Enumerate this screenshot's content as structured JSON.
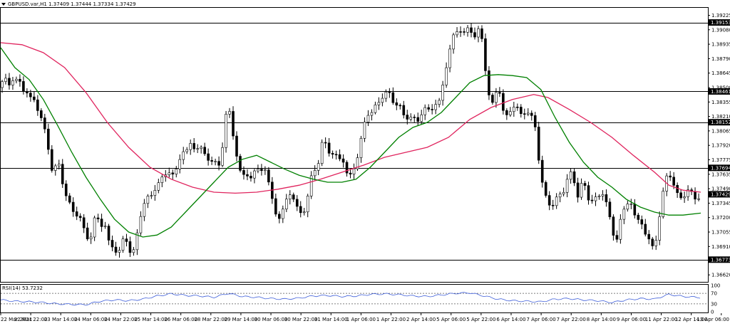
{
  "header": {
    "symbol_line": "GBPUSD.var,H1  1.37409 1.37444 1.37334 1.37429",
    "menu_icon": "triangle-down-icon"
  },
  "rsi_panel": {
    "label": "RSI(14) 53.7232",
    "levels": [
      "100",
      "70",
      "30",
      "0"
    ]
  },
  "colors": {
    "candle": "#000000",
    "ma_fast": "#008000",
    "ma_slow": "#e0245e",
    "rsi": "#3f5fd9",
    "hline": "#000000",
    "price_tag_bg": "#000000",
    "price_tag_fg": "#ffffff"
  },
  "chart_data": {
    "type": "candlestick",
    "y_ticks": [
      "1.39225",
      "1.39080",
      "1.38935",
      "1.38790",
      "1.38645",
      "1.38500",
      "1.38355",
      "1.38210",
      "1.38065",
      "1.37920",
      "1.37775",
      "1.37635",
      "1.37490",
      "1.37345",
      "1.37200",
      "1.37055",
      "1.36910",
      "1.36620"
    ],
    "ylim": [
      1.3655,
      1.393
    ],
    "x_ticks": [
      "22 Mar 2021",
      "22 Mar 22:00",
      "23 Mar 14:00",
      "24 Mar 06:00",
      "24 Mar 22:00",
      "25 Mar 14:00",
      "26 Mar 06:00",
      "28 Mar 22:00",
      "29 Mar 14:00",
      "30 Mar 06:00",
      "30 Mar 22:00",
      "31 Mar 14:00",
      "1 Apr 06:00",
      "1 Apr 22:00",
      "2 Apr 14:00",
      "5 Apr 06:00",
      "5 Apr 22:00",
      "6 Apr 14:00",
      "7 Apr 06:00",
      "7 Apr 22:00",
      "8 Apr 14:00",
      "9 Apr 06:00",
      "11 Apr 22:00",
      "12 Apr 14:00",
      "13 Apr 06:00"
    ],
    "horizontal_levels": [
      {
        "price": 1.39153,
        "label": "1.39153"
      },
      {
        "price": 1.38461,
        "label": "1.38461"
      },
      {
        "price": 1.38152,
        "label": "1.38152"
      },
      {
        "price": 1.37694,
        "label": "1.37694"
      },
      {
        "price": 1.36773,
        "label": "1.36773"
      }
    ],
    "current_price": {
      "price": 1.37429,
      "label": "1.37429"
    },
    "close_path": [
      [
        0,
        1.385
      ],
      [
        5,
        1.3865
      ],
      [
        10,
        1.3848
      ],
      [
        15,
        1.386
      ],
      [
        20,
        1.3855
      ],
      [
        25,
        1.3862
      ],
      [
        30,
        1.3845
      ],
      [
        35,
        1.385
      ],
      [
        40,
        1.3838
      ],
      [
        45,
        1.3842
      ],
      [
        50,
        1.383
      ],
      [
        55,
        1.3825
      ],
      [
        60,
        1.3812
      ],
      [
        65,
        1.38
      ],
      [
        70,
        1.377
      ],
      [
        75,
        1.3765
      ],
      [
        80,
        1.378
      ],
      [
        85,
        1.376
      ],
      [
        90,
        1.3745
      ],
      [
        95,
        1.3738
      ],
      [
        100,
        1.3728
      ],
      [
        105,
        1.372
      ],
      [
        110,
        1.3725
      ],
      [
        115,
        1.3712
      ],
      [
        120,
        1.3702
      ],
      [
        125,
        1.3692
      ],
      [
        130,
        1.3715
      ],
      [
        135,
        1.3725
      ],
      [
        140,
        1.3705
      ],
      [
        145,
        1.372
      ],
      [
        150,
        1.37
      ],
      [
        155,
        1.369
      ],
      [
        160,
        1.3688
      ],
      [
        165,
        1.3682
      ],
      [
        170,
        1.3695
      ],
      [
        175,
        1.37
      ],
      [
        180,
        1.3688
      ],
      [
        185,
        1.3682
      ],
      [
        190,
        1.3695
      ],
      [
        195,
        1.3715
      ],
      [
        200,
        1.373
      ],
      [
        205,
        1.3742
      ],
      [
        210,
        1.3738
      ],
      [
        215,
        1.3745
      ],
      [
        220,
        1.3752
      ],
      [
        225,
        1.376
      ],
      [
        230,
        1.3758
      ],
      [
        235,
        1.3768
      ],
      [
        240,
        1.3762
      ],
      [
        245,
        1.3765
      ],
      [
        250,
        1.377
      ],
      [
        255,
        1.379
      ],
      [
        260,
        1.3782
      ],
      [
        265,
        1.3795
      ],
      [
        270,
        1.379
      ],
      [
        275,
        1.3788
      ],
      [
        280,
        1.3792
      ],
      [
        285,
        1.3785
      ],
      [
        290,
        1.378
      ],
      [
        295,
        1.3775
      ],
      [
        300,
        1.3778
      ],
      [
        305,
        1.377
      ],
      [
        310,
        1.3775
      ],
      [
        315,
        1.3815
      ],
      [
        320,
        1.3835
      ],
      [
        325,
        1.381
      ],
      [
        330,
        1.379
      ],
      [
        335,
        1.377
      ],
      [
        340,
        1.376
      ],
      [
        345,
        1.3765
      ],
      [
        350,
        1.3758
      ],
      [
        355,
        1.3762
      ],
      [
        360,
        1.377
      ],
      [
        365,
        1.3765
      ],
      [
        370,
        1.3772
      ],
      [
        375,
        1.376
      ],
      [
        380,
        1.3745
      ],
      [
        385,
        1.373
      ],
      [
        390,
        1.3715
      ],
      [
        395,
        1.3722
      ],
      [
        400,
        1.3735
      ],
      [
        405,
        1.3745
      ],
      [
        410,
        1.374
      ],
      [
        415,
        1.3732
      ],
      [
        420,
        1.3728
      ],
      [
        425,
        1.3722
      ],
      [
        430,
        1.373
      ],
      [
        435,
        1.3755
      ],
      [
        440,
        1.3772
      ],
      [
        445,
        1.3762
      ],
      [
        450,
        1.379
      ],
      [
        455,
        1.38
      ],
      [
        460,
        1.3788
      ],
      [
        465,
        1.378
      ],
      [
        470,
        1.3785
      ],
      [
        475,
        1.3778
      ],
      [
        480,
        1.3782
      ],
      [
        485,
        1.3765
      ],
      [
        490,
        1.376
      ],
      [
        495,
        1.3768
      ],
      [
        500,
        1.3772
      ],
      [
        505,
        1.379
      ],
      [
        510,
        1.381
      ],
      [
        515,
        1.3825
      ],
      [
        520,
        1.382
      ],
      [
        525,
        1.383
      ],
      [
        530,
        1.3835
      ],
      [
        535,
        1.3838
      ],
      [
        540,
        1.3842
      ],
      [
        545,
        1.3848
      ],
      [
        550,
        1.384
      ],
      [
        555,
        1.383
      ],
      [
        560,
        1.3835
      ],
      [
        565,
        1.3825
      ],
      [
        570,
        1.382
      ],
      [
        575,
        1.3818
      ],
      [
        580,
        1.3822
      ],
      [
        585,
        1.3815
      ],
      [
        590,
        1.382
      ],
      [
        595,
        1.3828
      ],
      [
        600,
        1.383
      ],
      [
        605,
        1.3825
      ],
      [
        610,
        1.3835
      ],
      [
        615,
        1.383
      ],
      [
        620,
        1.3845
      ],
      [
        625,
        1.3865
      ],
      [
        630,
        1.388
      ],
      [
        635,
        1.39
      ],
      [
        640,
        1.3905
      ],
      [
        645,
        1.391
      ],
      [
        650,
        1.3902
      ],
      [
        655,
        1.3908
      ],
      [
        660,
        1.3912
      ],
      [
        665,
        1.3898
      ],
      [
        670,
        1.3905
      ],
      [
        675,
        1.3912
      ],
      [
        680,
        1.388
      ],
      [
        685,
        1.385
      ],
      [
        690,
        1.383
      ],
      [
        695,
        1.384
      ],
      [
        700,
        1.3855
      ],
      [
        705,
        1.383
      ],
      [
        710,
        1.382
      ],
      [
        715,
        1.3825
      ],
      [
        720,
        1.383
      ],
      [
        725,
        1.3832
      ],
      [
        730,
        1.3825
      ],
      [
        735,
        1.3822
      ],
      [
        740,
        1.3828
      ],
      [
        745,
        1.3818
      ],
      [
        750,
        1.3825
      ],
      [
        755,
        1.379
      ],
      [
        760,
        1.376
      ],
      [
        765,
        1.3745
      ],
      [
        770,
        1.3735
      ],
      [
        775,
        1.373
      ],
      [
        780,
        1.3735
      ],
      [
        785,
        1.3745
      ],
      [
        790,
        1.374
      ],
      [
        795,
        1.3755
      ],
      [
        800,
        1.3762
      ],
      [
        805,
        1.3768
      ],
      [
        810,
        1.3735
      ],
      [
        815,
        1.375
      ],
      [
        820,
        1.3758
      ],
      [
        825,
        1.374
      ],
      [
        830,
        1.3735
      ],
      [
        835,
        1.374
      ],
      [
        840,
        1.3738
      ],
      [
        845,
        1.3745
      ],
      [
        850,
        1.3742
      ],
      [
        855,
        1.3725
      ],
      [
        860,
        1.371
      ],
      [
        865,
        1.369
      ],
      [
        870,
        1.3712
      ],
      [
        875,
        1.3725
      ],
      [
        880,
        1.373
      ],
      [
        885,
        1.374
      ],
      [
        890,
        1.3725
      ],
      [
        895,
        1.3715
      ],
      [
        900,
        1.372
      ],
      [
        905,
        1.3705
      ],
      [
        910,
        1.37
      ],
      [
        915,
        1.3692
      ],
      [
        920,
        1.369
      ],
      [
        925,
        1.371
      ],
      [
        930,
        1.3735
      ],
      [
        935,
        1.376
      ],
      [
        940,
        1.3765
      ],
      [
        945,
        1.3755
      ],
      [
        950,
        1.3745
      ],
      [
        955,
        1.3742
      ],
      [
        960,
        1.3738
      ],
      [
        965,
        1.3745
      ],
      [
        970,
        1.3748
      ],
      [
        975,
        1.3742
      ],
      [
        980,
        1.3735
      ],
      [
        985,
        1.3743
      ]
    ],
    "ma_fast_path": [
      [
        0,
        1.389
      ],
      [
        20,
        1.387
      ],
      [
        40,
        1.3858
      ],
      [
        60,
        1.3838
      ],
      [
        80,
        1.3812
      ],
      [
        100,
        1.3785
      ],
      [
        120,
        1.376
      ],
      [
        140,
        1.3738
      ],
      [
        160,
        1.3718
      ],
      [
        180,
        1.3705
      ],
      [
        200,
        1.37
      ],
      [
        220,
        1.3702
      ],
      [
        240,
        1.371
      ],
      [
        260,
        1.3725
      ],
      [
        280,
        1.374
      ],
      [
        300,
        1.3755
      ],
      [
        320,
        1.377
      ],
      [
        340,
        1.3778
      ],
      [
        360,
        1.3782
      ],
      [
        380,
        1.3775
      ],
      [
        400,
        1.3768
      ],
      [
        420,
        1.3762
      ],
      [
        440,
        1.3758
      ],
      [
        460,
        1.3755
      ],
      [
        480,
        1.3755
      ],
      [
        500,
        1.3758
      ],
      [
        520,
        1.377
      ],
      [
        540,
        1.3785
      ],
      [
        560,
        1.38
      ],
      [
        580,
        1.381
      ],
      [
        600,
        1.3815
      ],
      [
        620,
        1.3825
      ],
      [
        640,
        1.384
      ],
      [
        660,
        1.3855
      ],
      [
        680,
        1.3862
      ],
      [
        700,
        1.3863
      ],
      [
        720,
        1.3862
      ],
      [
        740,
        1.386
      ],
      [
        760,
        1.3848
      ],
      [
        780,
        1.382
      ],
      [
        800,
        1.3795
      ],
      [
        820,
        1.3775
      ],
      [
        840,
        1.376
      ],
      [
        860,
        1.375
      ],
      [
        880,
        1.3738
      ],
      [
        900,
        1.373
      ],
      [
        920,
        1.3725
      ],
      [
        940,
        1.3722
      ],
      [
        960,
        1.3722
      ],
      [
        985,
        1.3724
      ]
    ],
    "ma_slow_path": [
      [
        0,
        1.3895
      ],
      [
        30,
        1.3893
      ],
      [
        60,
        1.3885
      ],
      [
        90,
        1.387
      ],
      [
        120,
        1.3845
      ],
      [
        150,
        1.3815
      ],
      [
        180,
        1.379
      ],
      [
        210,
        1.377
      ],
      [
        240,
        1.3758
      ],
      [
        270,
        1.375
      ],
      [
        300,
        1.3745
      ],
      [
        330,
        1.3744
      ],
      [
        360,
        1.3745
      ],
      [
        390,
        1.3748
      ],
      [
        420,
        1.3752
      ],
      [
        450,
        1.3758
      ],
      [
        480,
        1.3765
      ],
      [
        510,
        1.3772
      ],
      [
        540,
        1.378
      ],
      [
        570,
        1.3785
      ],
      [
        600,
        1.379
      ],
      [
        630,
        1.38
      ],
      [
        660,
        1.3818
      ],
      [
        690,
        1.383
      ],
      [
        720,
        1.3838
      ],
      [
        750,
        1.3843
      ],
      [
        770,
        1.384
      ],
      [
        800,
        1.3828
      ],
      [
        830,
        1.3815
      ],
      [
        860,
        1.38
      ],
      [
        890,
        1.3782
      ],
      [
        920,
        1.3765
      ],
      [
        940,
        1.3752
      ],
      [
        960,
        1.3747
      ],
      [
        985,
        1.3745
      ]
    ],
    "rsi_path": [
      [
        0,
        45
      ],
      [
        20,
        40
      ],
      [
        40,
        38
      ],
      [
        60,
        35
      ],
      [
        80,
        30
      ],
      [
        100,
        28
      ],
      [
        120,
        27
      ],
      [
        140,
        40
      ],
      [
        160,
        45
      ],
      [
        180,
        42
      ],
      [
        200,
        48
      ],
      [
        220,
        60
      ],
      [
        240,
        68
      ],
      [
        260,
        62
      ],
      [
        280,
        60
      ],
      [
        300,
        55
      ],
      [
        320,
        70
      ],
      [
        340,
        58
      ],
      [
        360,
        55
      ],
      [
        380,
        50
      ],
      [
        400,
        48
      ],
      [
        420,
        52
      ],
      [
        440,
        60
      ],
      [
        460,
        62
      ],
      [
        480,
        58
      ],
      [
        500,
        60
      ],
      [
        520,
        66
      ],
      [
        540,
        68
      ],
      [
        560,
        65
      ],
      [
        580,
        60
      ],
      [
        600,
        58
      ],
      [
        620,
        64
      ],
      [
        640,
        70
      ],
      [
        660,
        72
      ],
      [
        680,
        60
      ],
      [
        700,
        48
      ],
      [
        720,
        42
      ],
      [
        740,
        40
      ],
      [
        760,
        38
      ],
      [
        780,
        48
      ],
      [
        800,
        50
      ],
      [
        820,
        45
      ],
      [
        840,
        42
      ],
      [
        860,
        35
      ],
      [
        880,
        45
      ],
      [
        900,
        50
      ],
      [
        920,
        48
      ],
      [
        940,
        66
      ],
      [
        960,
        58
      ],
      [
        985,
        54
      ]
    ]
  }
}
